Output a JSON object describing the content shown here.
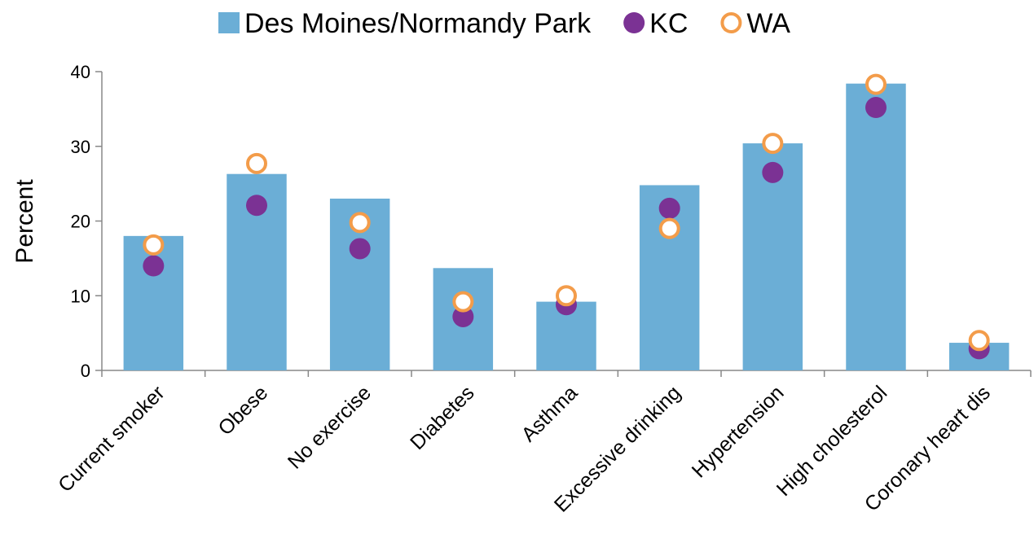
{
  "chart_data": {
    "type": "bar",
    "ylabel": "Percent",
    "categories": [
      "Current smoker",
      "Obese",
      "No exercise",
      "Diabetes",
      "Asthma",
      "Excessive drinking",
      "Hypertension",
      "High cholesterol",
      "Coronary heart dis"
    ],
    "series": [
      {
        "name": "Des Moines/Normandy Park",
        "type": "bar",
        "color": "#6baed6",
        "values": [
          18.0,
          26.3,
          23.0,
          13.7,
          9.2,
          24.8,
          30.4,
          38.4,
          3.7
        ]
      },
      {
        "name": "KC",
        "type": "scatter",
        "marker": "filled",
        "color": "#7b3294",
        "values": [
          14.0,
          22.1,
          16.3,
          7.2,
          8.8,
          21.7,
          26.5,
          35.2,
          2.9
        ]
      },
      {
        "name": "WA",
        "type": "scatter",
        "marker": "open",
        "color": "#f39c4a",
        "values": [
          16.8,
          27.7,
          19.8,
          9.2,
          10.0,
          19.0,
          30.4,
          38.3,
          4.0
        ]
      }
    ],
    "ylim": [
      0,
      40
    ],
    "yticks": [
      0,
      10,
      20,
      30,
      40
    ],
    "grid": false,
    "legend": "top"
  }
}
